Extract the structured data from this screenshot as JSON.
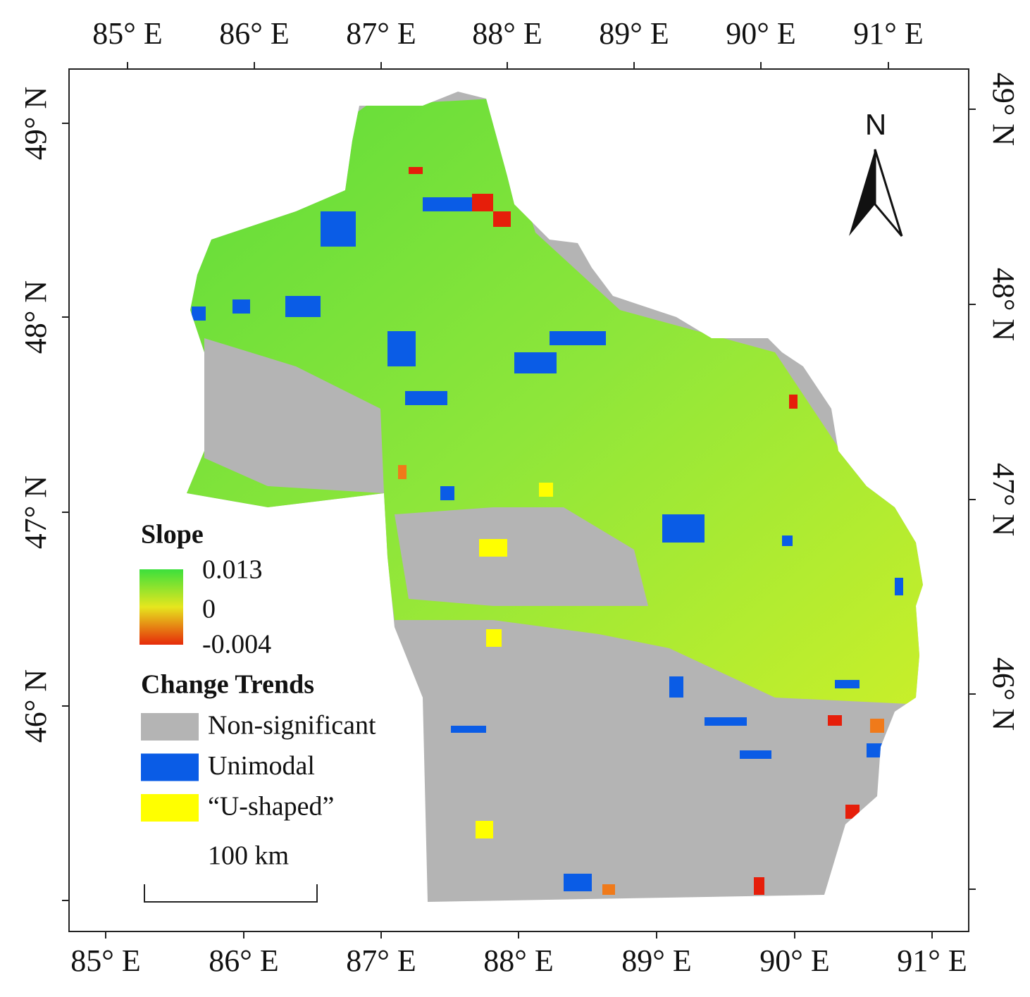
{
  "map": {
    "top_labels": [
      "85° E",
      "86° E",
      "87° E",
      "88° E",
      "89° E",
      "90° E",
      "91° E"
    ],
    "bottom_labels": [
      "85° E",
      "86° E",
      "87° E",
      "88° E",
      "89° E",
      "90° E",
      "91° E"
    ],
    "left_labels": [
      "49° N",
      "48° N",
      "47° N",
      "46° N"
    ],
    "right_labels": [
      "49° N",
      "48° N",
      "47° N",
      "46° N"
    ],
    "north": "N",
    "legend": {
      "slope_title": "Slope",
      "slope_max": 0.013,
      "slope_mid": 0,
      "slope_min": -0.004,
      "trends_title": "Change Trends",
      "items": [
        {
          "label": "Non-significant",
          "color": "#b4b4b4"
        },
        {
          "label": "Unimodal",
          "color": "#0a5ce6"
        },
        {
          "label": "“U-shaped”",
          "color": "#ffff00"
        }
      ]
    },
    "scale": "100 km"
  }
}
